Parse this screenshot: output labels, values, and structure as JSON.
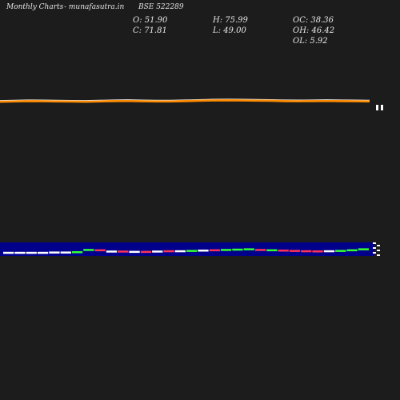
{
  "header": {
    "left_title": "Monthly Charts",
    "site": "- munafasutra.in",
    "symbol": "BSE 522289"
  },
  "ohlc": {
    "open": "O: 51.90",
    "high": "H: 75.99",
    "oc": "OC: 38.36",
    "close": "C: 71.81",
    "low": "L: 49.00",
    "oh": "OH: 46.42",
    "ol": "OL: 5.92"
  },
  "colors": {
    "background": "#1c1c1c",
    "price_line": "#ff8c00",
    "price_line_light": "#e6e6e6",
    "volume_band": "#00008b",
    "up": "#33ff33",
    "down": "#ff3355",
    "neutral": "#ffffff"
  },
  "chart_data": {
    "type": "line",
    "title": "",
    "series": [
      {
        "values": [
          0.5,
          0.55,
          0.6,
          0.58,
          0.55,
          0.52,
          0.5,
          0.55,
          0.6,
          0.62,
          0.58,
          0.55,
          0.55,
          0.6,
          0.65,
          0.7,
          0.72,
          0.7,
          0.68,
          0.65,
          0.6,
          0.58,
          0.6,
          0.62,
          0.6,
          0.58,
          0.55
        ]
      }
    ],
    "volume": {
      "type": "bar",
      "values": [
        0.15,
        0.15,
        0.15,
        0.15,
        0.2,
        0.2,
        0.25,
        0.6,
        0.55,
        0.35,
        0.35,
        0.3,
        0.3,
        0.35,
        0.4,
        0.4,
        0.45,
        0.5,
        0.55,
        0.6,
        0.65,
        0.7,
        0.6,
        0.55,
        0.5,
        0.45,
        0.4,
        0.38,
        0.4,
        0.45,
        0.55,
        0.7
      ],
      "directions": [
        "n",
        "n",
        "n",
        "n",
        "n",
        "n",
        "u",
        "u",
        "d",
        "n",
        "d",
        "n",
        "d",
        "n",
        "d",
        "n",
        "u",
        "n",
        "d",
        "u",
        "u",
        "u",
        "d",
        "u",
        "d",
        "d",
        "d",
        "d",
        "n",
        "u",
        "u",
        "u"
      ]
    }
  }
}
